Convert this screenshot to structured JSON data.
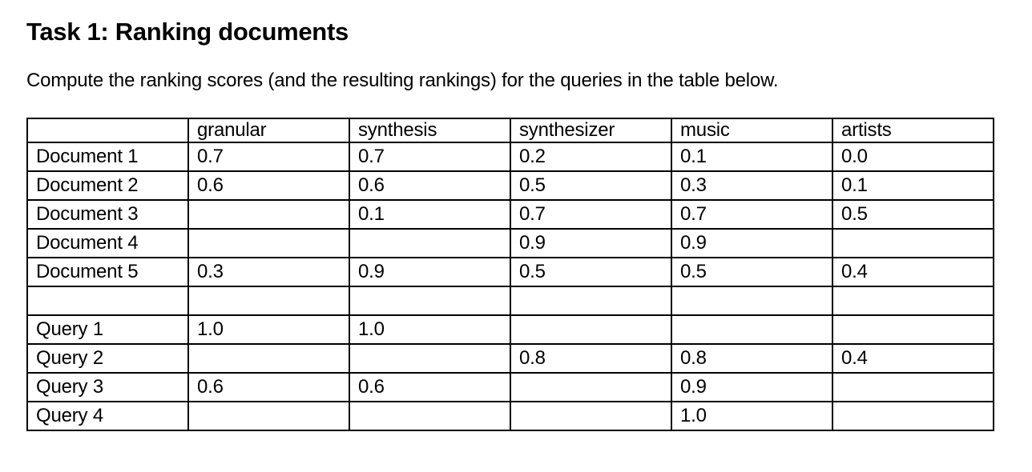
{
  "document": {
    "title": "Task 1: Ranking documents",
    "instruction": "Compute the ranking scores (and the resulting rankings) for the queries in the table below."
  },
  "table": {
    "columns": [
      "",
      "granular",
      "synthesis",
      "synthesizer",
      "music",
      "artists"
    ],
    "rows": [
      {
        "label": "Document 1",
        "values": [
          "0.7",
          "0.7",
          "0.2",
          "0.1",
          "0.0"
        ]
      },
      {
        "label": "Document 2",
        "values": [
          "0.6",
          "0.6",
          "0.5",
          "0.3",
          "0.1"
        ]
      },
      {
        "label": "Document 3",
        "values": [
          "",
          "0.1",
          "0.7",
          "0.7",
          "0.5"
        ]
      },
      {
        "label": "Document 4",
        "values": [
          "",
          "",
          "0.9",
          "0.9",
          ""
        ]
      },
      {
        "label": "Document 5",
        "values": [
          "0.3",
          "0.9",
          "0.5",
          "0.5",
          "0.4"
        ]
      },
      {
        "label": "",
        "values": [
          "",
          "",
          "",
          "",
          ""
        ]
      },
      {
        "label": "Query 1",
        "values": [
          "1.0",
          "1.0",
          "",
          "",
          ""
        ]
      },
      {
        "label": "Query 2",
        "values": [
          "",
          "",
          "0.8",
          "0.8",
          "0.4"
        ]
      },
      {
        "label": "Query 3",
        "values": [
          "0.6",
          "0.6",
          "",
          "0.9",
          ""
        ]
      },
      {
        "label": "Query 4",
        "values": [
          "",
          "",
          "",
          "1.0",
          ""
        ]
      }
    ]
  }
}
